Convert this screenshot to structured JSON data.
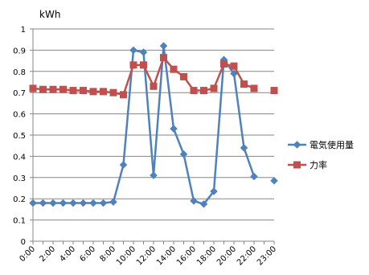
{
  "chart_data": {
    "type": "line",
    "title": "",
    "xlabel": "",
    "ylabel": "kWh",
    "ylim": [
      0,
      1
    ],
    "y_ticks": [
      "0",
      "0.1",
      "0.2",
      "0.3",
      "0.4",
      "0.5",
      "0.6",
      "0.7",
      "0.8",
      "0.9",
      "1"
    ],
    "x_tick_labels": [
      "0:00",
      "2:00",
      "4:00",
      "6:00",
      "8:00",
      "10:00",
      "12:00",
      "14:00",
      "16:00",
      "18:00",
      "20:00",
      "22:00",
      "23:00"
    ],
    "x_tick_hours": [
      0,
      2,
      4,
      6,
      8,
      10,
      12,
      14,
      16,
      18,
      20,
      22,
      24
    ],
    "grid": "horizontal",
    "legend_position": "right",
    "series": [
      {
        "name": "電気使用量",
        "color": "#4f81bd",
        "marker": "diamond",
        "points": [
          [
            0,
            0.18
          ],
          [
            1,
            0.18
          ],
          [
            2,
            0.18
          ],
          [
            3,
            0.18
          ],
          [
            4,
            0.18
          ],
          [
            5,
            0.18
          ],
          [
            6,
            0.18
          ],
          [
            7,
            0.18
          ],
          [
            8,
            0.185
          ],
          [
            9,
            0.36
          ],
          [
            10,
            0.9
          ],
          [
            11,
            0.89
          ],
          [
            12,
            0.31
          ],
          [
            13,
            0.92
          ],
          [
            14,
            0.53
          ],
          [
            15,
            0.41
          ],
          [
            16,
            0.19
          ],
          [
            17,
            0.175
          ],
          [
            18,
            0.235
          ],
          [
            19,
            0.855
          ],
          [
            20,
            0.79
          ],
          [
            21,
            0.44
          ],
          [
            22,
            0.305
          ]
        ],
        "points_segment2": [
          [
            24,
            0.285
          ]
        ]
      },
      {
        "name": "力率",
        "color": "#c0504d",
        "marker": "square",
        "points": [
          [
            0,
            0.72
          ],
          [
            1,
            0.715
          ],
          [
            2,
            0.715
          ],
          [
            3,
            0.715
          ],
          [
            4,
            0.71
          ],
          [
            5,
            0.71
          ],
          [
            6,
            0.705
          ],
          [
            7,
            0.705
          ],
          [
            8,
            0.7
          ],
          [
            9,
            0.69
          ],
          [
            10,
            0.83
          ],
          [
            11,
            0.83
          ],
          [
            12,
            0.73
          ],
          [
            13,
            0.865
          ],
          [
            14,
            0.81
          ],
          [
            15,
            0.775
          ],
          [
            16,
            0.71
          ],
          [
            17,
            0.71
          ],
          [
            18,
            0.72
          ],
          [
            19,
            0.835
          ],
          [
            20,
            0.825
          ],
          [
            21,
            0.74
          ],
          [
            22,
            0.72
          ]
        ],
        "points_segment2": [
          [
            24,
            0.71
          ]
        ]
      }
    ]
  }
}
